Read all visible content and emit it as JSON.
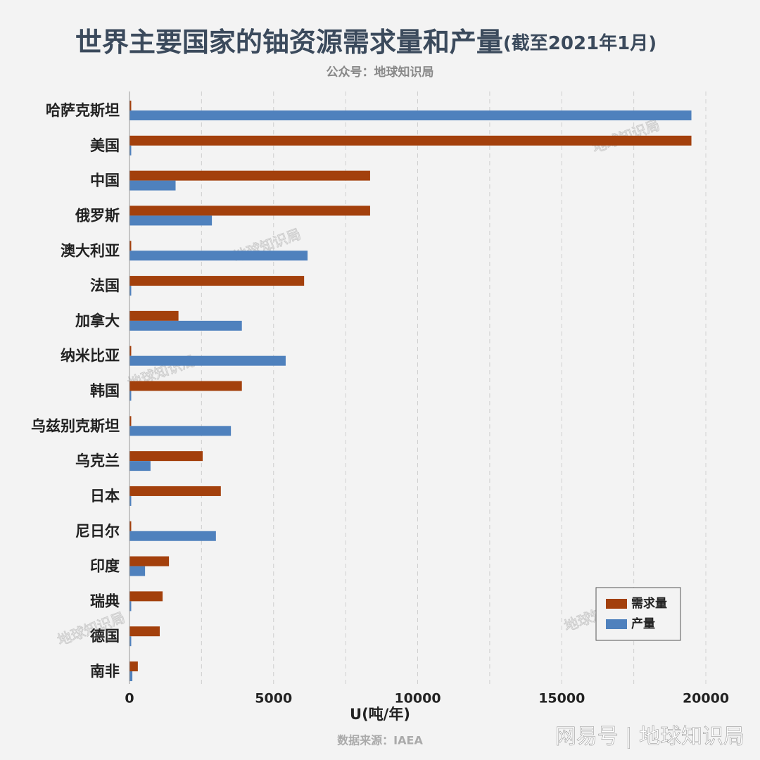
{
  "chart_data": {
    "type": "hbar",
    "title": "世界主要国家的铀资源需求量和产量",
    "title_note": "(截至2021年1月)",
    "subtitle": "公众号：地球知识局",
    "x_label": "U(吨/年)",
    "source": "数据来源：IAEA",
    "watermark": "地球知识局",
    "brand": "网易号 | 地球知识局",
    "categories": [
      "哈萨克斯坦",
      "美国",
      "中国",
      "俄罗斯",
      "澳大利亚",
      "法国",
      "加拿大",
      "纳米比亚",
      "韩国",
      "乌兹别克斯坦",
      "乌克兰",
      "日本",
      "尼日尔",
      "印度",
      "瑞典",
      "德国",
      "南非"
    ],
    "series": [
      {
        "name": "需求量",
        "color": "#a3400c",
        "values": [
          60,
          19500,
          8350,
          8350,
          60,
          6060,
          1700,
          60,
          3900,
          60,
          2540,
          3170,
          60,
          1370,
          1150,
          1050,
          290
        ]
      },
      {
        "name": "产量",
        "color": "#4f81bd",
        "values": [
          19500,
          60,
          1600,
          2860,
          6180,
          60,
          3900,
          5420,
          60,
          3520,
          730,
          60,
          3000,
          540,
          60,
          60,
          100
        ]
      }
    ],
    "xlim": [
      0,
      20000
    ],
    "xticks": [
      0,
      5000,
      10000,
      15000,
      20000
    ],
    "grid_xticks": [
      2500,
      5000,
      7500,
      10000,
      12500,
      15000,
      17500,
      20000
    ],
    "grid": true,
    "legend": "lower-right"
  }
}
